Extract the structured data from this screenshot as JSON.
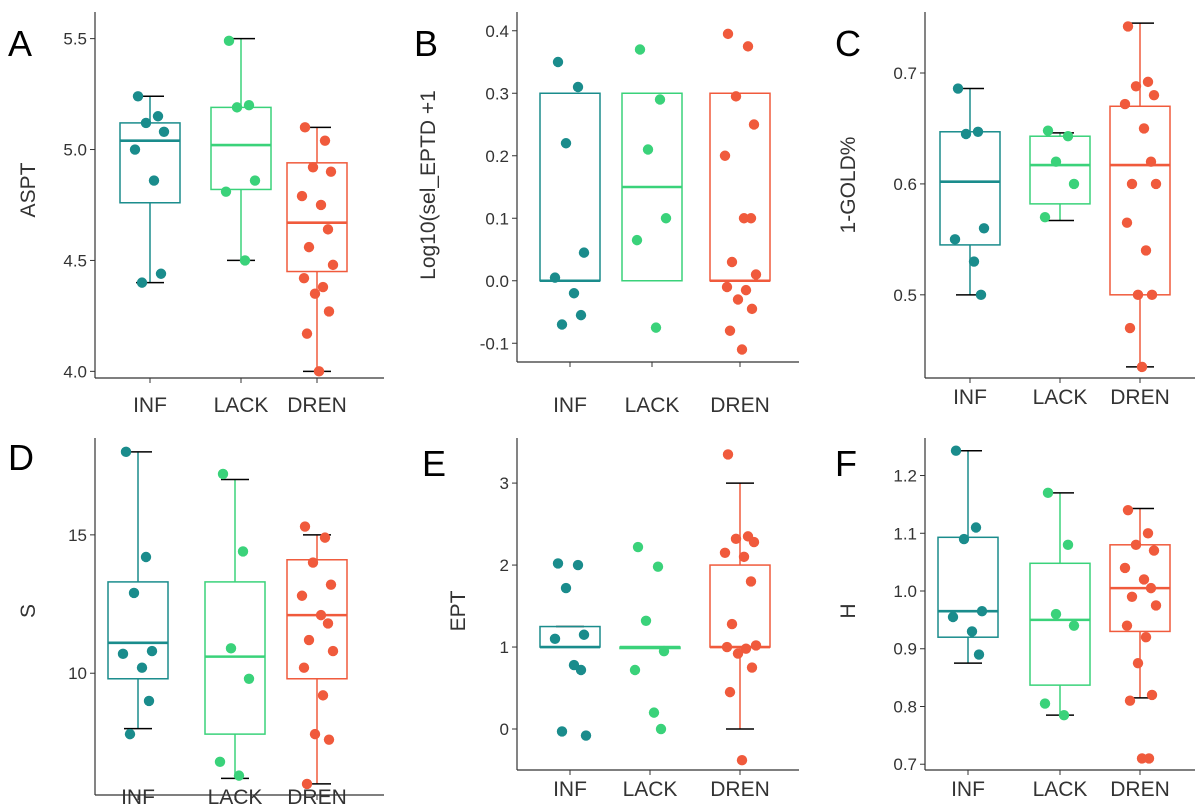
{
  "figure": {
    "group_order": [
      "INF",
      "LACK",
      "DREN"
    ],
    "colors": {
      "INF": "#1a8c8c",
      "LACK": "#3ad27a",
      "DREN": "#f05a3c",
      "axis": "#333333",
      "whisker": "#000000"
    }
  },
  "chart_data": [
    {
      "panel": "A",
      "type": "box",
      "ylabel": "ASPT",
      "ylim": [
        3.97,
        5.62
      ],
      "yticks": [
        "4.0",
        "4.5",
        "5.0",
        "5.5"
      ],
      "categories": [
        "INF",
        "LACK",
        "DREN"
      ],
      "boxes": [
        {
          "q1": 4.76,
          "median": 5.04,
          "q3": 5.12,
          "lower": 4.4,
          "upper": 5.24,
          "points": [
            5.24,
            5.15,
            5.12,
            5.08,
            5.0,
            4.86,
            4.44,
            4.4
          ]
        },
        {
          "q1": 4.82,
          "median": 5.02,
          "q3": 5.19,
          "lower": 4.5,
          "upper": 5.5,
          "points": [
            5.49,
            5.2,
            5.19,
            4.86,
            4.81,
            4.5
          ]
        },
        {
          "q1": 4.45,
          "median": 4.67,
          "q3": 4.94,
          "lower": 4.0,
          "upper": 5.1,
          "points": [
            5.1,
            5.04,
            4.92,
            4.9,
            4.79,
            4.75,
            4.64,
            4.56,
            4.48,
            4.42,
            4.38,
            4.35,
            4.27,
            4.17,
            4.0
          ]
        }
      ]
    },
    {
      "panel": "B",
      "type": "box",
      "ylabel": "Log10(sel_EPTD +1",
      "ylim": [
        -0.13,
        0.43
      ],
      "yticks": [
        "-0.1",
        "0.0",
        "0.1",
        "0.2",
        "0.3",
        "0.4"
      ],
      "categories": [
        "INF",
        "LACK",
        "DREN"
      ],
      "boxes": [
        {
          "q1": 0.0,
          "median": 0.0,
          "q3": 0.3,
          "lower": 0.0,
          "upper": 0.3,
          "points": [
            0.35,
            0.31,
            0.22,
            0.045,
            0.005,
            -0.02,
            -0.055,
            -0.07
          ]
        },
        {
          "q1": 0.0,
          "median": 0.15,
          "q3": 0.3,
          "lower": 0.0,
          "upper": 0.3,
          "points": [
            0.37,
            0.29,
            0.21,
            0.1,
            0.065,
            -0.075
          ]
        },
        {
          "q1": 0.0,
          "median": 0.0,
          "q3": 0.3,
          "lower": 0.0,
          "upper": 0.3,
          "points": [
            0.395,
            0.375,
            0.295,
            0.25,
            0.2,
            0.1,
            0.1,
            0.03,
            0.01,
            -0.01,
            -0.015,
            -0.03,
            -0.045,
            -0.08,
            -0.11
          ]
        }
      ]
    },
    {
      "panel": "C",
      "type": "box",
      "ylabel": "1-GOLD%",
      "ylim": [
        0.425,
        0.755
      ],
      "yticks": [
        "0.5",
        "0.6",
        "0.7"
      ],
      "categories": [
        "INF",
        "LACK",
        "DREN"
      ],
      "boxes": [
        {
          "q1": 0.545,
          "median": 0.602,
          "q3": 0.647,
          "lower": 0.5,
          "upper": 0.686,
          "points": [
            0.686,
            0.647,
            0.645,
            0.56,
            0.55,
            0.53,
            0.5
          ]
        },
        {
          "q1": 0.582,
          "median": 0.617,
          "q3": 0.643,
          "lower": 0.567,
          "upper": 0.646,
          "points": [
            0.648,
            0.643,
            0.62,
            0.6,
            0.57
          ]
        },
        {
          "q1": 0.5,
          "median": 0.617,
          "q3": 0.67,
          "lower": 0.435,
          "upper": 0.745,
          "points": [
            0.742,
            0.692,
            0.688,
            0.68,
            0.672,
            0.65,
            0.62,
            0.6,
            0.6,
            0.565,
            0.54,
            0.5,
            0.5,
            0.47,
            0.435
          ]
        }
      ]
    },
    {
      "panel": "D",
      "type": "box",
      "ylabel": "S",
      "ylim": [
        5.6,
        18.5
      ],
      "yticks": [
        "10",
        "15"
      ],
      "categories": [
        "INF",
        "LACK",
        "DREN"
      ],
      "boxes": [
        {
          "q1": 9.8,
          "median": 11.1,
          "q3": 13.3,
          "lower": 8.0,
          "upper": 18.0,
          "points": [
            18.0,
            14.2,
            12.9,
            10.8,
            10.7,
            10.2,
            9.0,
            7.8
          ]
        },
        {
          "q1": 7.8,
          "median": 10.6,
          "q3": 13.3,
          "lower": 6.2,
          "upper": 17.0,
          "points": [
            17.2,
            14.4,
            10.9,
            9.8,
            6.8,
            6.3
          ]
        },
        {
          "q1": 9.8,
          "median": 12.1,
          "q3": 14.1,
          "lower": 6.0,
          "upper": 15.0,
          "points": [
            15.3,
            14.9,
            14.0,
            13.2,
            12.8,
            12.1,
            11.8,
            11.2,
            10.8,
            10.2,
            9.2,
            7.8,
            7.6,
            6.0
          ]
        }
      ]
    },
    {
      "panel": "E",
      "type": "box",
      "ylabel": "EPT",
      "ylim": [
        -0.5,
        3.55
      ],
      "yticks": [
        "0",
        "1",
        "2",
        "3"
      ],
      "categories": [
        "INF",
        "LACK",
        "DREN"
      ],
      "boxes": [
        {
          "q1": 1.0,
          "median": 1.0,
          "q3": 1.25,
          "lower": 1.0,
          "upper": 1.25,
          "points": [
            2.02,
            2.0,
            1.72,
            1.15,
            1.1,
            0.78,
            0.72,
            -0.03,
            -0.08
          ]
        },
        {
          "q1": 1.0,
          "median": 1.0,
          "q3": 1.0,
          "lower": 1.0,
          "upper": 1.0,
          "points": [
            2.22,
            1.98,
            1.32,
            0.95,
            0.72,
            0.2,
            0.0
          ]
        },
        {
          "q1": 1.0,
          "median": 1.0,
          "q3": 2.0,
          "lower": 0.0,
          "upper": 3.0,
          "points": [
            3.35,
            2.35,
            2.32,
            2.28,
            2.15,
            2.1,
            1.8,
            1.28,
            1.02,
            1.0,
            0.98,
            0.92,
            0.75,
            0.45,
            -0.38
          ]
        }
      ]
    },
    {
      "panel": "F",
      "type": "box",
      "ylabel": "H",
      "ylim": [
        0.69,
        1.265
      ],
      "yticks": [
        "0.7",
        "0.8",
        "0.9",
        "1.0",
        "1.1",
        "1.2"
      ],
      "categories": [
        "INF",
        "LACK",
        "DREN"
      ],
      "boxes": [
        {
          "q1": 0.92,
          "median": 0.965,
          "q3": 1.093,
          "lower": 0.875,
          "upper": 1.243,
          "points": [
            1.243,
            1.11,
            1.09,
            0.965,
            0.955,
            0.93,
            0.89
          ]
        },
        {
          "q1": 0.837,
          "median": 0.95,
          "q3": 1.048,
          "lower": 0.785,
          "upper": 1.17,
          "points": [
            1.17,
            1.08,
            0.96,
            0.94,
            0.805,
            0.785
          ]
        },
        {
          "q1": 0.93,
          "median": 1.005,
          "q3": 1.08,
          "lower": 0.815,
          "upper": 1.143,
          "points": [
            1.14,
            1.1,
            1.08,
            1.07,
            1.04,
            1.02,
            1.005,
            0.99,
            0.975,
            0.94,
            0.92,
            0.875,
            0.82,
            0.81,
            0.71,
            0.71
          ]
        }
      ]
    }
  ]
}
